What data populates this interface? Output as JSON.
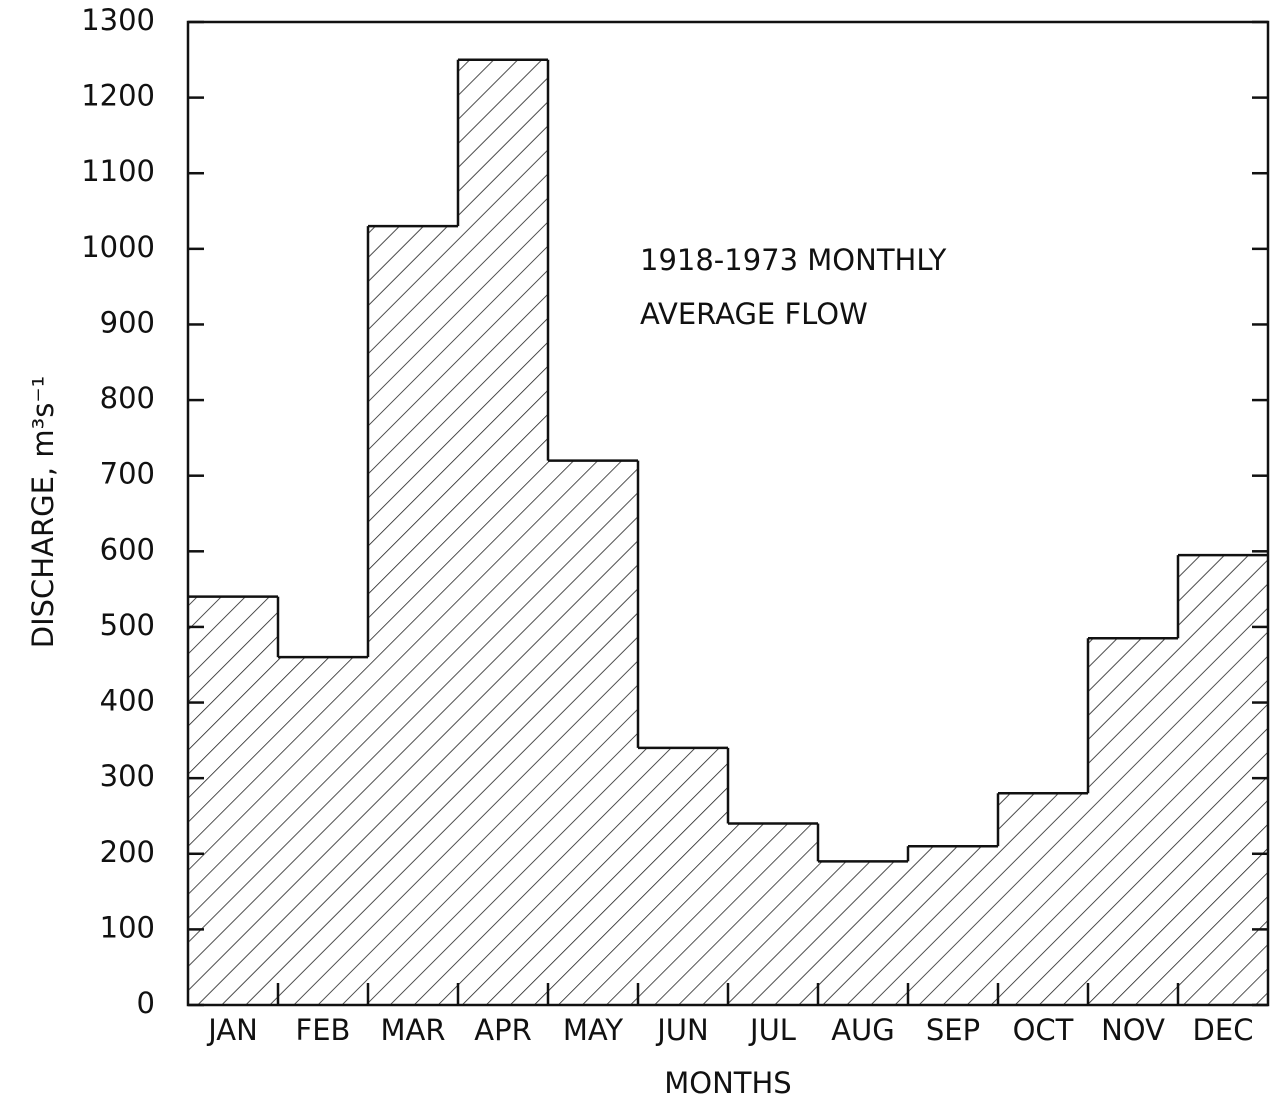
{
  "chart_data": {
    "type": "bar",
    "y_label": "DISCHARGE, m³s⁻¹",
    "x_label": "MONTHS",
    "annotation": [
      "1918-1973 MONTHLY",
      "AVERAGE FLOW"
    ],
    "categories": [
      "JAN",
      "FEB",
      "MAR",
      "APR",
      "MAY",
      "JUN",
      "JUL",
      "AUG",
      "SEP",
      "OCT",
      "NOV",
      "DEC"
    ],
    "values": [
      540,
      460,
      1030,
      1250,
      720,
      340,
      240,
      190,
      210,
      280,
      485,
      595
    ],
    "color": "#111111",
    "ylim": [
      0,
      1300
    ],
    "yticks": [
      0,
      100,
      200,
      300,
      400,
      500,
      600,
      700,
      800,
      900,
      1000,
      1100,
      1200,
      1300
    ]
  }
}
